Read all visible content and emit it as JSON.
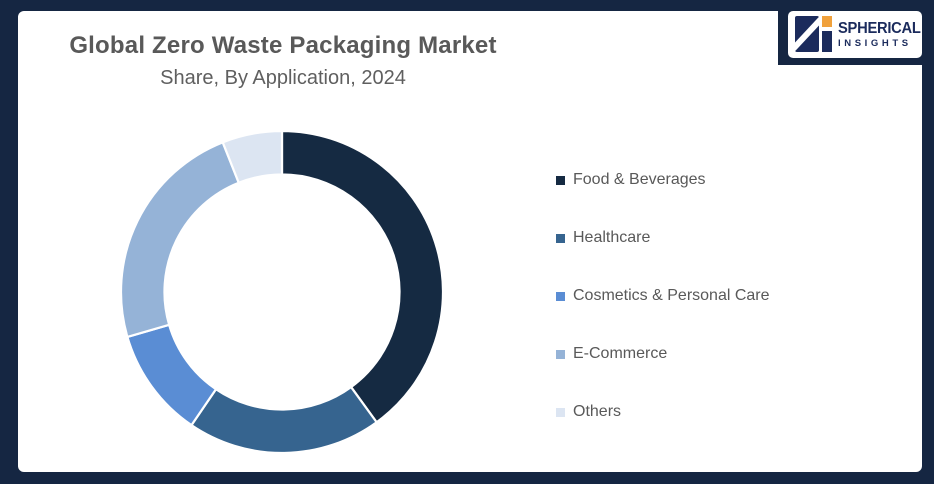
{
  "frame": {
    "border_color": "#152642",
    "background_color": "#ffffff"
  },
  "header": {
    "title": "Global Zero Waste Packaging Market",
    "subtitle": "Share, By Application, 2024",
    "text_color": "#595959"
  },
  "logo": {
    "line1": "SPHERICAL",
    "line2": "INSIGHTS",
    "text_color": "#1B2B5C",
    "accent_color": "#F0A13C",
    "mark_color": "#1B2B5C"
  },
  "chart_data": {
    "type": "pie",
    "donut": true,
    "title": "Global Zero Waste Packaging Market Share, By Application, 2024",
    "categories": [
      "Food & Beverages",
      "Healthcare",
      "Cosmetics & Personal Care",
      "E-Commerce",
      "Others"
    ],
    "values": [
      40,
      19.5,
      11,
      23.5,
      6
    ],
    "unit": "%",
    "values_estimated_from_arc_angles": true,
    "colors": [
      "#152A42",
      "#36648F",
      "#5A8DD4",
      "#95B3D7",
      "#DCE5F2"
    ],
    "start_angle_deg": 0,
    "direction": "clockwise",
    "inner_radius_ratio": 0.73,
    "segment_gap_color": "#ffffff",
    "legend_position": "right",
    "data_labels": "none"
  },
  "legend": {
    "text_color": "#595959"
  }
}
